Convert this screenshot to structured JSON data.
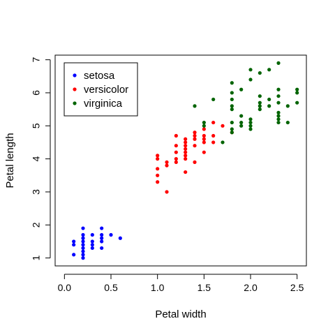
{
  "chart_data": {
    "type": "scatter",
    "title": "",
    "xlabel": "Petal width",
    "ylabel": "Petal length",
    "xlim": [
      -0.1,
      2.6
    ],
    "ylim": [
      0.76,
      7.14
    ],
    "xticks": [
      0.0,
      0.5,
      1.0,
      1.5,
      2.0,
      2.5
    ],
    "xtick_labels": [
      "0.0",
      "0.5",
      "1.0",
      "1.5",
      "2.0",
      "2.5"
    ],
    "yticks": [
      1,
      2,
      3,
      4,
      5,
      6,
      7
    ],
    "ytick_labels": [
      "1",
      "2",
      "3",
      "4",
      "5",
      "6",
      "7"
    ],
    "grid": false,
    "legend_position": "top-left",
    "series": [
      {
        "name": "setosa",
        "color": "#0000ff",
        "points": [
          [
            0.2,
            1.4
          ],
          [
            0.2,
            1.3
          ],
          [
            0.2,
            1.5
          ],
          [
            0.2,
            1.7
          ],
          [
            0.2,
            1.6
          ],
          [
            0.2,
            1.1
          ],
          [
            0.2,
            1.2
          ],
          [
            0.2,
            1.0
          ],
          [
            0.2,
            1.9
          ],
          [
            0.1,
            1.4
          ],
          [
            0.1,
            1.5
          ],
          [
            0.1,
            1.1
          ],
          [
            0.3,
            1.4
          ],
          [
            0.3,
            1.5
          ],
          [
            0.3,
            1.3
          ],
          [
            0.3,
            1.7
          ],
          [
            0.4,
            1.5
          ],
          [
            0.4,
            1.3
          ],
          [
            0.4,
            1.7
          ],
          [
            0.4,
            1.9
          ],
          [
            0.4,
            1.6
          ],
          [
            0.5,
            1.7
          ],
          [
            0.6,
            1.6
          ]
        ]
      },
      {
        "name": "versicolor",
        "color": "#ff0000",
        "points": [
          [
            1.0,
            3.3
          ],
          [
            1.0,
            3.5
          ],
          [
            1.0,
            3.7
          ],
          [
            1.0,
            4.0
          ],
          [
            1.0,
            4.1
          ],
          [
            1.1,
            3.0
          ],
          [
            1.1,
            3.8
          ],
          [
            1.1,
            3.9
          ],
          [
            1.2,
            3.9
          ],
          [
            1.2,
            4.0
          ],
          [
            1.2,
            4.2
          ],
          [
            1.2,
            4.4
          ],
          [
            1.2,
            4.7
          ],
          [
            1.3,
            3.6
          ],
          [
            1.3,
            4.0
          ],
          [
            1.3,
            4.1
          ],
          [
            1.3,
            4.2
          ],
          [
            1.3,
            4.3
          ],
          [
            1.3,
            4.4
          ],
          [
            1.3,
            4.5
          ],
          [
            1.3,
            4.6
          ],
          [
            1.4,
            3.9
          ],
          [
            1.4,
            4.4
          ],
          [
            1.4,
            4.6
          ],
          [
            1.4,
            4.7
          ],
          [
            1.4,
            4.8
          ],
          [
            1.5,
            4.2
          ],
          [
            1.5,
            4.5
          ],
          [
            1.5,
            4.6
          ],
          [
            1.5,
            4.7
          ],
          [
            1.5,
            4.9
          ],
          [
            1.6,
            4.5
          ],
          [
            1.6,
            4.7
          ],
          [
            1.6,
            5.1
          ],
          [
            1.7,
            5.0
          ],
          [
            1.8,
            4.8
          ]
        ]
      },
      {
        "name": "virginica",
        "color": "#006400",
        "points": [
          [
            1.4,
            5.6
          ],
          [
            1.5,
            5.0
          ],
          [
            1.5,
            5.1
          ],
          [
            1.6,
            5.8
          ],
          [
            1.7,
            4.5
          ],
          [
            1.8,
            4.8
          ],
          [
            1.8,
            4.9
          ],
          [
            1.8,
            5.1
          ],
          [
            1.8,
            5.5
          ],
          [
            1.8,
            5.6
          ],
          [
            1.8,
            5.8
          ],
          [
            1.8,
            6.0
          ],
          [
            1.8,
            6.3
          ],
          [
            1.9,
            5.0
          ],
          [
            1.9,
            5.1
          ],
          [
            1.9,
            5.3
          ],
          [
            1.9,
            6.1
          ],
          [
            2.0,
            4.9
          ],
          [
            2.0,
            5.0
          ],
          [
            2.0,
            5.1
          ],
          [
            2.0,
            5.2
          ],
          [
            2.0,
            6.4
          ],
          [
            2.0,
            6.7
          ],
          [
            2.1,
            5.5
          ],
          [
            2.1,
            5.6
          ],
          [
            2.1,
            5.7
          ],
          [
            2.1,
            5.9
          ],
          [
            2.1,
            6.6
          ],
          [
            2.2,
            5.6
          ],
          [
            2.2,
            5.8
          ],
          [
            2.2,
            6.7
          ],
          [
            2.3,
            5.1
          ],
          [
            2.3,
            5.2
          ],
          [
            2.3,
            5.3
          ],
          [
            2.3,
            5.4
          ],
          [
            2.3,
            5.7
          ],
          [
            2.3,
            5.9
          ],
          [
            2.3,
            6.1
          ],
          [
            2.3,
            6.9
          ],
          [
            2.4,
            5.1
          ],
          [
            2.4,
            5.6
          ],
          [
            2.5,
            5.7
          ],
          [
            2.5,
            6.0
          ],
          [
            2.5,
            6.1
          ]
        ]
      }
    ]
  }
}
